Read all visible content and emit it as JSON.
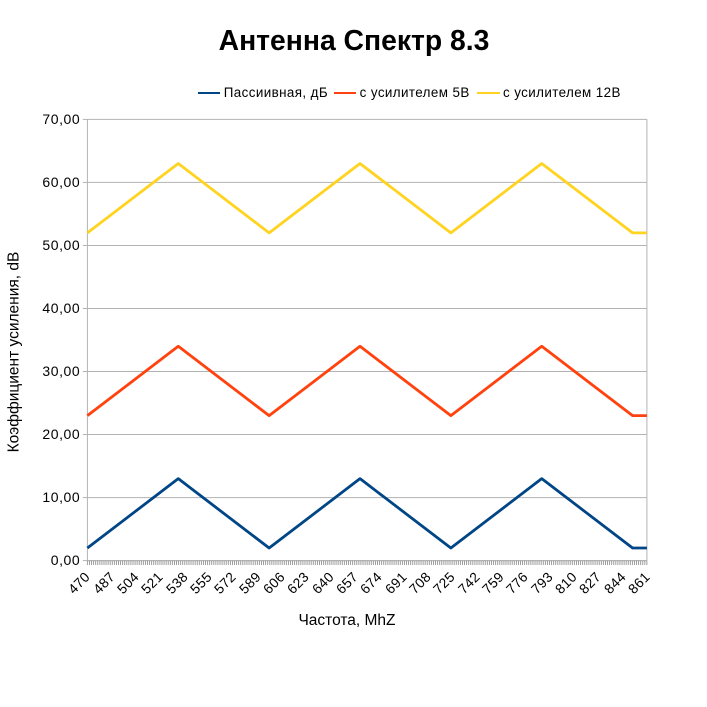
{
  "title": "Антенна Спектр 8.3",
  "legend": {
    "items": [
      {
        "label": "Пассиивная, дБ",
        "color": "#004586"
      },
      {
        "label": "с усилителем 5В",
        "color": "#ff420e"
      },
      {
        "label": "с усилителем 12В",
        "color": "#ffd320"
      }
    ]
  },
  "y_axis": {
    "title": "Коэффициент усиления, dB",
    "tick_labels": [
      "0,00",
      "10,00",
      "20,00",
      "30,00",
      "40,00",
      "50,00",
      "60,00",
      "70,00"
    ],
    "min": 0,
    "max": 70,
    "step": 10
  },
  "x_axis": {
    "title": "Частота, MhZ",
    "tick_labels": [
      "470",
      "487",
      "504",
      "521",
      "538",
      "555",
      "572",
      "589",
      "606",
      "623",
      "640",
      "657",
      "674",
      "691",
      "708",
      "725",
      "742",
      "759",
      "776",
      "793",
      "810",
      "827",
      "844",
      "861"
    ],
    "min": 470,
    "max": 861
  },
  "colors": {
    "background": "#ffffff",
    "text": "#000000",
    "gridline": "#b3b3b3",
    "axis": "#b3b3b3",
    "minor_ticks": "#949494",
    "series1": "#004586",
    "series2": "#ff420e",
    "series3": "#ffd320"
  },
  "chart_data": {
    "type": "line",
    "title": "Антенна Спектр 8.3",
    "xlabel": "Частота, MhZ",
    "ylabel": "Коэффициент усиления, dB",
    "xlim": [
      470,
      861
    ],
    "ylim": [
      0,
      70
    ],
    "y_ticks": [
      0,
      10,
      20,
      30,
      40,
      50,
      60,
      70
    ],
    "y_tick_labels": [
      "0,00",
      "10,00",
      "20,00",
      "30,00",
      "40,00",
      "50,00",
      "60,00",
      "70,00"
    ],
    "x_tick_labels": [
      "470",
      "487",
      "504",
      "521",
      "538",
      "555",
      "572",
      "589",
      "606",
      "623",
      "640",
      "657",
      "674",
      "691",
      "708",
      "725",
      "742",
      "759",
      "776",
      "793",
      "810",
      "827",
      "844",
      "861"
    ],
    "grid": "horizontal",
    "legend_position": "top",
    "series": [
      {
        "name": "Пассиивная, дБ",
        "color": "#004586",
        "x": [
          470,
          533.5,
          597,
          660.5,
          724,
          787.5,
          851,
          861
        ],
        "y": [
          2,
          13,
          2,
          13,
          2,
          13,
          2,
          2
        ]
      },
      {
        "name": "с усилителем 5В",
        "color": "#ff420e",
        "x": [
          470,
          533.5,
          597,
          660.5,
          724,
          787.5,
          851,
          861
        ],
        "y": [
          23,
          34,
          23,
          34,
          23,
          34,
          23,
          23
        ]
      },
      {
        "name": "с усилителем 12В",
        "color": "#ffd320",
        "x": [
          470,
          533.5,
          597,
          660.5,
          724,
          787.5,
          851,
          861
        ],
        "y": [
          52,
          63,
          52,
          63,
          52,
          63,
          52,
          52
        ]
      }
    ]
  }
}
